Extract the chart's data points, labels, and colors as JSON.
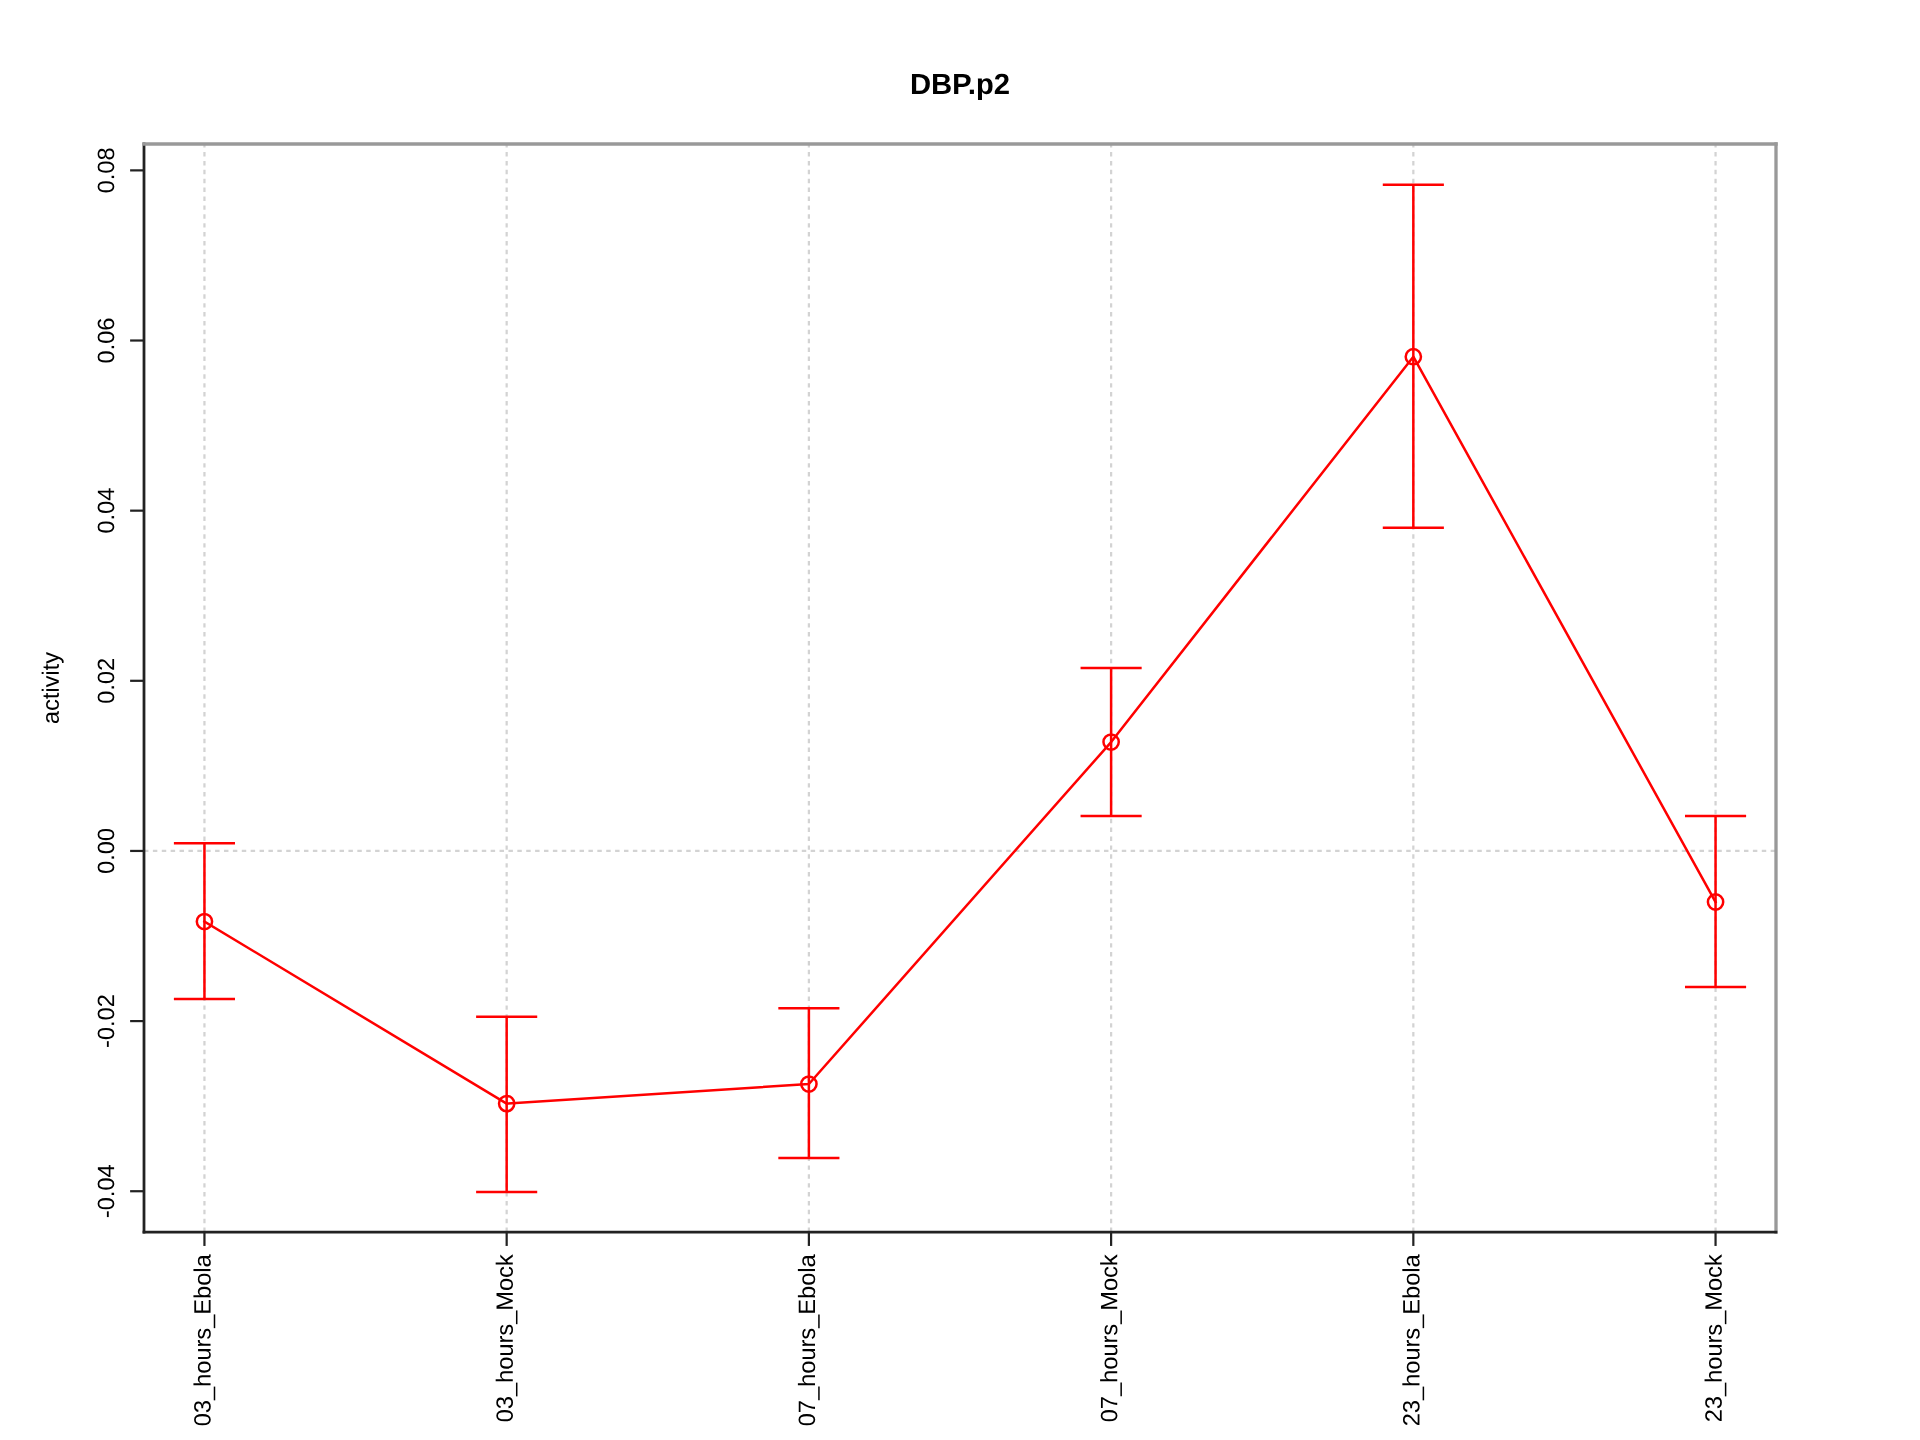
{
  "chart_data": {
    "type": "line",
    "title": "DBP.p2",
    "ylabel": "activity",
    "categories": [
      "03_hours_Ebola",
      "03_hours_Mock",
      "07_hours_Ebola",
      "07_hours_Mock",
      "23_hours_Ebola",
      "23_hours_Mock"
    ],
    "series": [
      {
        "color": "#ff0000",
        "values": [
          -0.0083,
          -0.0297,
          -0.0274,
          0.0128,
          0.0581,
          -0.006
        ],
        "errors": [
          [
            -0.0174,
            0.0009
          ],
          [
            -0.0401,
            -0.0195
          ],
          [
            -0.0361,
            -0.0185
          ],
          [
            0.0041,
            0.0215
          ],
          [
            0.038,
            0.0783
          ],
          [
            -0.016,
            0.0041
          ]
        ]
      }
    ],
    "ylim": [
      -0.0448,
      0.0831
    ],
    "yticks": [
      -0.04,
      -0.02,
      {
        "value": 0,
        "label": "0.00"
      },
      0.02,
      0.04,
      0.06,
      0.08
    ],
    "grid": "x",
    "marker": "circle",
    "line_style": "solid",
    "ref_lines": [
      {
        "axis": "y",
        "value": 0,
        "color": "#d3d3d3",
        "line_style": "dotted"
      }
    ]
  }
}
